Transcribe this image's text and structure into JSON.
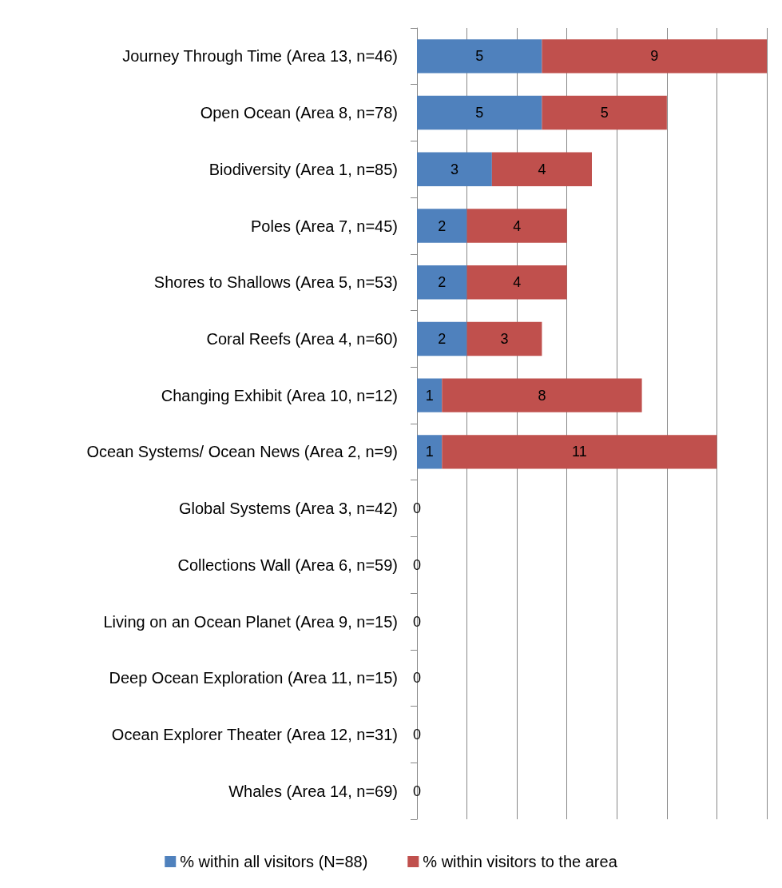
{
  "chart_data": {
    "type": "bar",
    "orientation": "horizontal",
    "stacked": true,
    "grid": "x",
    "legend": "bottom",
    "tick_labels": "y",
    "categories": [
      "Journey Through Time (Area 13, n=46)",
      "Open Ocean (Area 8, n=78)",
      "Biodiversity (Area 1, n=85)",
      "Poles (Area 7, n=45)",
      "Shores to Shallows (Area 5, n=53)",
      "Coral Reefs (Area 4, n=60)",
      "Changing Exhibit (Area 10, n=12)",
      "Ocean Systems/ Ocean News (Area 2, n=9)",
      "Global Systems (Area 3, n=42)",
      "Collections Wall (Area 6, n=59)",
      "Living on an Ocean Planet (Area 9, n=15)",
      "Deep Ocean Exploration (Area 11, n=15)",
      "Ocean Explorer Theater (Area 12, n=31)",
      "Whales (Area 14, n=69)"
    ],
    "xlim": [
      0,
      14
    ],
    "xticks": [
      {
        "value": 0,
        "label": null
      },
      {
        "value": 2,
        "label": null
      },
      {
        "value": 4,
        "label": null
      },
      {
        "value": 6,
        "label": null
      },
      {
        "value": 8,
        "label": null
      },
      {
        "value": 10,
        "label": null
      },
      {
        "value": 12,
        "label": null
      },
      {
        "value": 14,
        "label": null
      }
    ],
    "series": [
      {
        "name": "% within all visitors (N=88)",
        "color": "#4f81bd",
        "values": [
          5,
          5,
          3,
          2,
          2,
          2,
          1,
          1,
          0,
          0,
          0,
          0,
          0,
          0
        ],
        "value_labels": [
          "5",
          "5",
          "3",
          "2",
          "2",
          "2",
          "1",
          "1",
          "0",
          "0",
          "0",
          "0",
          "0",
          "0"
        ]
      },
      {
        "name": "% within visitors to the area",
        "color": "#c0504d",
        "values": [
          9,
          5,
          4,
          4,
          4,
          3,
          8,
          11,
          0,
          0,
          0,
          0,
          0,
          0
        ],
        "value_labels": [
          "9",
          "5",
          "4",
          "4",
          "4",
          "3",
          "8",
          "11",
          null,
          null,
          null,
          null,
          null,
          null
        ]
      }
    ]
  }
}
